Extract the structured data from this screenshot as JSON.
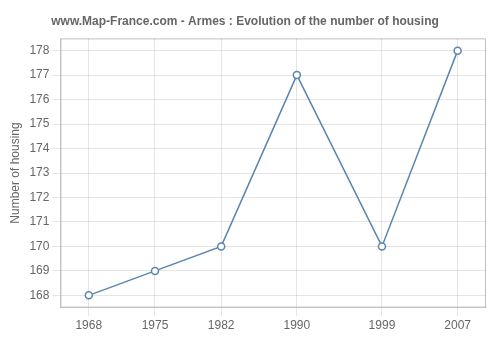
{
  "chart_data": {
    "type": "line",
    "title": "www.Map-France.com - Armes : Evolution of the number of housing",
    "ylabel": "Number of housing",
    "x": [
      1968,
      1975,
      1982,
      1990,
      1999,
      2007
    ],
    "values": [
      168,
      169,
      170,
      177,
      170,
      178
    ],
    "color": "#5a85b0",
    "marker": "circle",
    "xlim": [
      1965,
      2010
    ],
    "xticks": [
      1968,
      1975,
      1982,
      1990,
      1999,
      2007
    ],
    "ylim": [
      167.5,
      178.5
    ],
    "yticks": [
      168,
      169,
      170,
      171,
      172,
      173,
      174,
      175,
      176,
      177,
      178
    ],
    "grid": true
  }
}
